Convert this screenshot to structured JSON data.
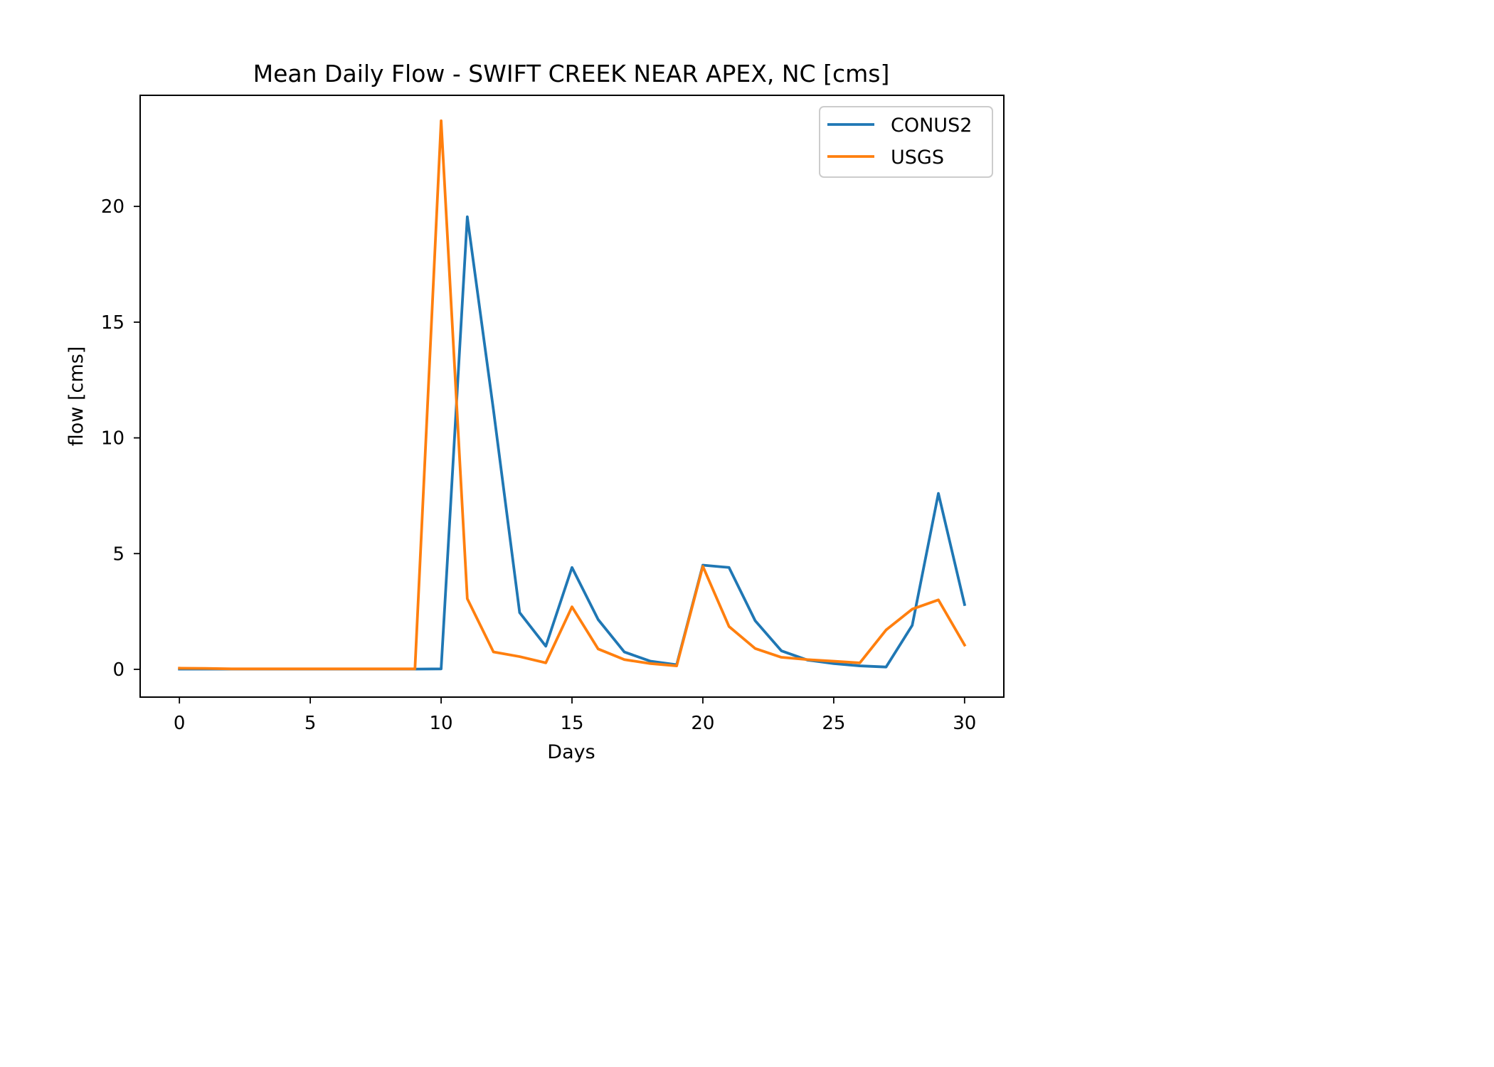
{
  "chart_data": {
    "type": "line",
    "title": "Mean Daily Flow - SWIFT CREEK NEAR APEX, NC [cms]",
    "xlabel": "Days",
    "ylabel": "flow [cms]",
    "xlim": [
      -1.5,
      31.5
    ],
    "ylim": [
      -1.2,
      24.8
    ],
    "xticks": [
      0,
      5,
      10,
      15,
      20,
      25,
      30
    ],
    "xtick_labels": [
      "0",
      "5",
      "10",
      "15",
      "20",
      "25",
      "30"
    ],
    "yticks": [
      0,
      5,
      10,
      15,
      20
    ],
    "ytick_labels": [
      "0",
      "5",
      "10",
      "15",
      "20"
    ],
    "grid": false,
    "legend_position": "top-right",
    "x": [
      0,
      1,
      2,
      3,
      4,
      5,
      6,
      7,
      8,
      9,
      10,
      11,
      12,
      13,
      14,
      15,
      16,
      17,
      18,
      19,
      20,
      21,
      22,
      23,
      24,
      25,
      26,
      27,
      28,
      29,
      30
    ],
    "series": [
      {
        "name": "CONUS2",
        "color": "#1f77b4",
        "values": [
          0.01,
          0.01,
          0.01,
          0.01,
          0.01,
          0.01,
          0.01,
          0.01,
          0.01,
          0.01,
          0.02,
          19.55,
          11.2,
          2.45,
          1.0,
          4.4,
          2.15,
          0.75,
          0.35,
          0.2,
          4.5,
          4.4,
          2.1,
          0.8,
          0.4,
          0.25,
          0.15,
          0.1,
          1.9,
          7.6,
          2.8
        ]
      },
      {
        "name": "USGS",
        "color": "#ff7f0e",
        "values": [
          0.05,
          0.04,
          0.02,
          0.02,
          0.02,
          0.02,
          0.02,
          0.02,
          0.02,
          0.02,
          23.7,
          3.05,
          0.75,
          0.55,
          0.28,
          2.7,
          0.88,
          0.42,
          0.25,
          0.15,
          4.45,
          1.85,
          0.9,
          0.52,
          0.42,
          0.35,
          0.28,
          1.7,
          2.6,
          3.0,
          1.05
        ]
      }
    ]
  }
}
